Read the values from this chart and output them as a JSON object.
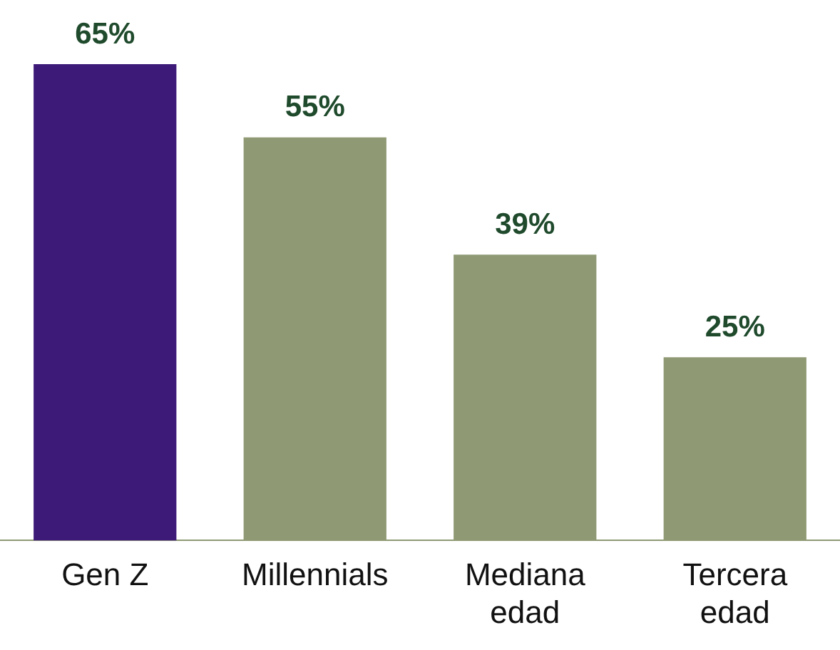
{
  "chart_data": {
    "type": "bar",
    "categories": [
      "Gen Z",
      "Millennials",
      "Mediana edad",
      "Tercera edad"
    ],
    "values": [
      65,
      55,
      39,
      25
    ],
    "value_labels": [
      "65%",
      "55%",
      "39%",
      "25%"
    ],
    "colors": [
      "#3d1a78",
      "#8f9a74",
      "#8f9a74",
      "#8f9a74"
    ],
    "grid": false,
    "legend": false
  }
}
